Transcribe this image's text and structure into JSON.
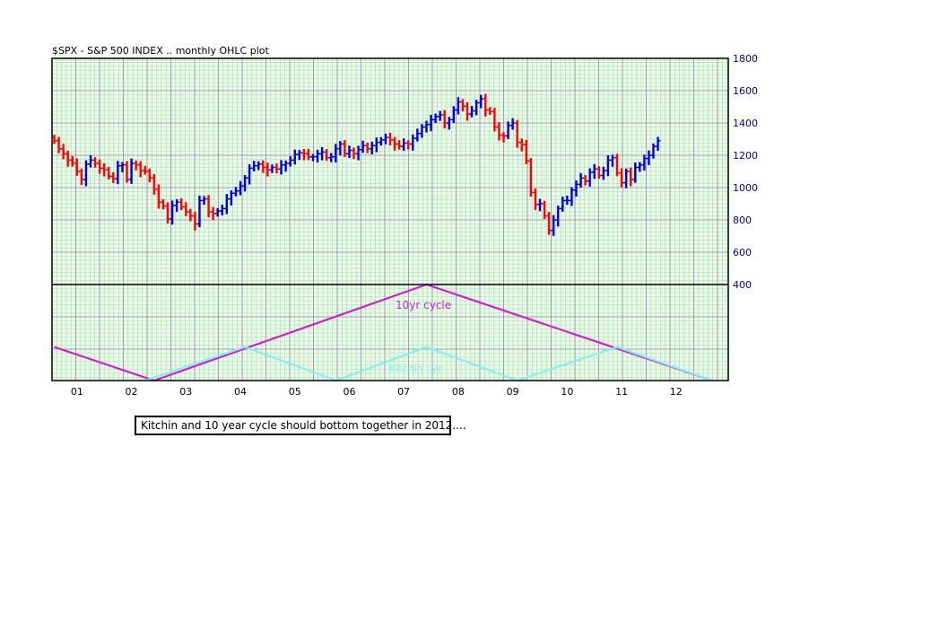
{
  "chart_data": {
    "type": "ohlc",
    "title": "$SPX - S&P 500 INDEX .. monthly OHLC plot",
    "xlabel": "",
    "ylabel": "",
    "x_tick_labels": [
      "01",
      "02",
      "03",
      "04",
      "05",
      "06",
      "07",
      "08",
      "09",
      "10",
      "11",
      "12"
    ],
    "y_tick_labels": [
      "1800",
      "1600",
      "1400",
      "1200",
      "1000",
      "800",
      "600",
      "400"
    ],
    "ylim": [
      400,
      1800
    ],
    "xlim": [
      "2000-09",
      "2013-02"
    ],
    "grid": true,
    "up_color": "#0000dd",
    "down_color": "#ff0000",
    "monthly_closes": {
      "start": "2000-09",
      "values": [
        1290,
        1240,
        1210,
        1170,
        1150,
        1100,
        1050,
        1145,
        1170,
        1150,
        1120,
        1110,
        1070,
        1055,
        1135,
        1140,
        1050,
        1150,
        1140,
        1105,
        1100,
        1060,
        990,
        910,
        885,
        805,
        890,
        910,
        880,
        850,
        825,
        775,
        920,
        930,
        850,
        840,
        855,
        870,
        930,
        965,
        980,
        1010,
        1060,
        1120,
        1135,
        1145,
        1125,
        1110,
        1125,
        1115,
        1140,
        1150,
        1170,
        1205,
        1215,
        1210,
        1190,
        1190,
        1210,
        1220,
        1185,
        1190,
        1240,
        1270,
        1210,
        1230,
        1210,
        1235,
        1260,
        1240,
        1260,
        1280,
        1295,
        1310,
        1295,
        1270,
        1255,
        1275,
        1270,
        1305,
        1335,
        1375,
        1390,
        1420,
        1440,
        1450,
        1400,
        1420,
        1480,
        1530,
        1505,
        1455,
        1475,
        1525,
        1550,
        1480,
        1470,
        1375,
        1325,
        1320,
        1385,
        1400,
        1280,
        1265,
        1165,
        970,
        895,
        900,
        825,
        735,
        800,
        870,
        920,
        920,
        985,
        1020,
        1060,
        1040,
        1095,
        1115,
        1075,
        1105,
        1170,
        1185,
        1090,
        1030,
        1100,
        1050,
        1125,
        1140,
        1180,
        1200,
        1255,
        1290
      ]
    },
    "panels": [
      {
        "name": "price",
        "type": "ohlc",
        "ylim": [
          400,
          1800
        ]
      },
      {
        "name": "cycles",
        "type": "line"
      }
    ],
    "series": [
      {
        "name": "10yr cycle",
        "color": "#cc22cc",
        "points": [
          [
            "2000-09",
            0.35
          ],
          [
            "2002-07",
            0.0
          ],
          [
            "2007-07",
            1.0
          ],
          [
            "2012-10",
            0.0
          ]
        ]
      },
      {
        "name": "Kitchin cyc",
        "color": "#88eeee",
        "points": [
          [
            "2002-05",
            0.0
          ],
          [
            "2004-03",
            0.35
          ],
          [
            "2005-11",
            0.0
          ],
          [
            "2007-07",
            0.35
          ],
          [
            "2009-03",
            0.0
          ],
          [
            "2011-01",
            0.35
          ],
          [
            "2012-10",
            0.0
          ]
        ]
      }
    ],
    "annotations": [
      "10yr cycle",
      "Kitchin cyc"
    ],
    "note": "Kitchin and 10 year cycle should bottom together in 2012...."
  }
}
